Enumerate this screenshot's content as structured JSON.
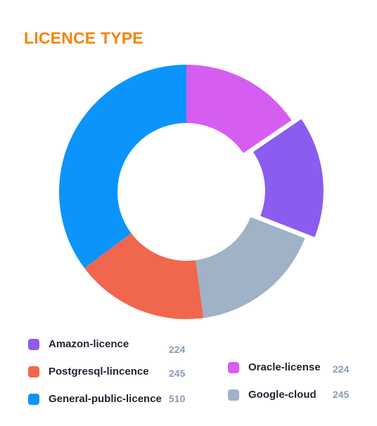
{
  "title": "LICENCE TYPE",
  "colors": {
    "title": "#f5840c"
  },
  "chart_data": {
    "type": "pie",
    "style": "donut",
    "title": "LICENCE TYPE",
    "exploded_slice": "Amazon-licence",
    "slices": [
      {
        "name": "Oracle-license",
        "value": 224,
        "color": "#d55ef0"
      },
      {
        "name": "Amazon-licence",
        "value": 224,
        "color": "#8b5cf0"
      },
      {
        "name": "Google-cloud",
        "value": 245,
        "color": "#9fb2c6"
      },
      {
        "name": "Postgresql-lincence",
        "value": 245,
        "color": "#f0674d"
      },
      {
        "name": "General-public-licence",
        "value": 510,
        "color": "#0b95fc"
      }
    ]
  },
  "legend": [
    {
      "label": "Amazon-licence",
      "value": "224",
      "color": "#8b5cf0"
    },
    {
      "label": "Postgresql-lincence",
      "value": "245",
      "color": "#f0674d"
    },
    {
      "label": "General-public-licence",
      "value": "510",
      "color": "#0b95fc"
    },
    {
      "label": "Oracle-license",
      "value": "224",
      "color": "#d55ef0"
    },
    {
      "label": "Google-cloud",
      "value": "245",
      "color": "#9fb2c6"
    }
  ]
}
